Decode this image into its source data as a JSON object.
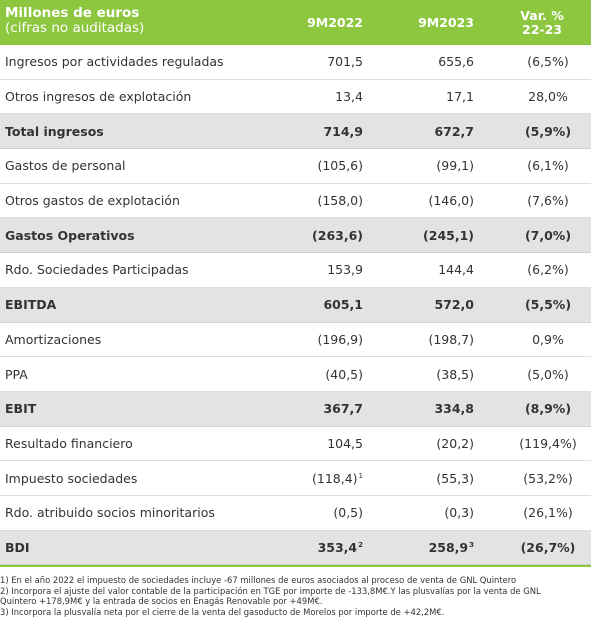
{
  "header": {
    "title": "Millones de euros",
    "subtitle": "(cifras no auditadas)",
    "col1": "9M2022",
    "col2": "9M2023",
    "col3_line1": "Var. %",
    "col3_line2": "22-23"
  },
  "rows": [
    {
      "label": "Ingresos por actividades reguladas",
      "v2022": "701,5",
      "v2023": "655,6",
      "var": "(6,5%)",
      "bold": false
    },
    {
      "label": "Otros ingresos de explotación",
      "v2022": "13,4",
      "v2023": "17,1",
      "var": "28,0%",
      "bold": false
    },
    {
      "label": "Total ingresos",
      "v2022": "714,9",
      "v2023": "672,7",
      "var": "(5,9%)",
      "bold": true
    },
    {
      "label": "Gastos de personal",
      "v2022": "(105,6)",
      "v2023": "(99,1)",
      "var": "(6,1%)",
      "bold": false
    },
    {
      "label": "Otros gastos de explotación",
      "v2022": "(158,0)",
      "v2023": "(146,0)",
      "var": "(7,6%)",
      "bold": false
    },
    {
      "label": "Gastos Operativos",
      "v2022": "(263,6)",
      "v2023": "(245,1)",
      "var": "(7,0%)",
      "bold": true
    },
    {
      "label": "Rdo. Sociedades Participadas",
      "v2022": "153,9",
      "v2023": "144,4",
      "var": "(6,2%)",
      "bold": false
    },
    {
      "label": "EBITDA",
      "v2022": "605,1",
      "v2023": "572,0",
      "var": "(5,5%)",
      "bold": true
    },
    {
      "label": "Amortizaciones",
      "v2022": "(196,9)",
      "v2023": "(198,7)",
      "var": "0,9%",
      "bold": false
    },
    {
      "label": "PPA",
      "v2022": "(40,5)",
      "v2023": "(38,5)",
      "var": "(5,0%)",
      "bold": false
    },
    {
      "label": "EBIT",
      "v2022": "367,7",
      "v2023": "334,8",
      "var": "(8,9%)",
      "bold": true
    },
    {
      "label": "Resultado financiero",
      "v2022": "104,5",
      "v2023": "(20,2)",
      "var": "(119,4%)",
      "bold": false
    },
    {
      "label": "Impuesto sociedades",
      "v2022": "(118,4)",
      "v2022_sup": "1",
      "v2023": "(55,3)",
      "var": "(53,2%)",
      "bold": false
    },
    {
      "label": "Rdo. atribuido socios minoritarios",
      "v2022": "(0,5)",
      "v2023": "(0,3)",
      "var": "(26,1%)",
      "bold": false
    },
    {
      "label": "BDI",
      "v2022": "353,4",
      "v2022_sup": "2",
      "v2023": "258,9",
      "v2023_sup": "3",
      "var": "(26,7%)",
      "bold": true
    }
  ],
  "footnotes": [
    "1) En el año 2022 el impuesto de sociedades incluye -67 millones de euros asociados al proceso de venta de GNL Quintero",
    "2) Incorpora el ajuste del valor contable de la participación en TGE por importe de -133,8M€.Y las plusvalías por la venta de GNL",
    "Quintero +178,9M€ y la entrada de socios en Enagás Renovable por +49M€.",
    "3) Incorpora la plusvalía neta por el cierre de la venta del gasoducto de Morelos por importe de +42,2M€."
  ],
  "colors": {
    "header_bg": "#8dc63f",
    "subtotal_bg": "#e3e3e3"
  }
}
